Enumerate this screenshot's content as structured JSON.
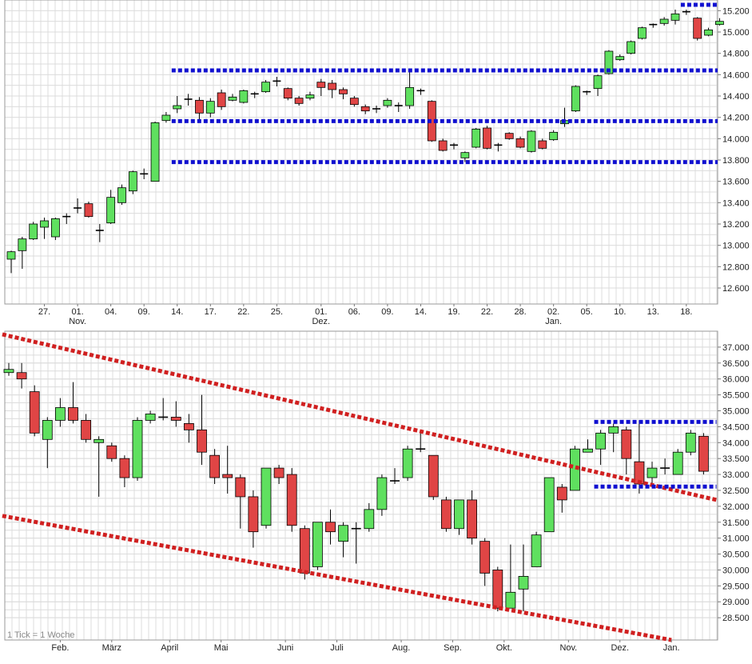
{
  "chart_data": [
    {
      "type": "candlestick",
      "period": "daily",
      "ylim": [
        12450,
        15300
      ],
      "y_ticks": [
        "12.600",
        "12.800",
        "13.000",
        "13.200",
        "13.400",
        "13.600",
        "13.800",
        "14.000",
        "14.200",
        "14.400",
        "14.600",
        "14.800",
        "15.000",
        "15.200"
      ],
      "y_tick_values": [
        12600,
        12800,
        13000,
        13200,
        13400,
        13600,
        13800,
        14000,
        14200,
        14400,
        14600,
        14800,
        15000,
        15200
      ],
      "x_ticks": [
        {
          "label": "27.",
          "index": 3
        },
        {
          "label": "01.",
          "index": 6
        },
        {
          "label": "04.",
          "index": 9
        },
        {
          "label": "09.",
          "index": 12
        },
        {
          "label": "14.",
          "index": 15
        },
        {
          "label": "17.",
          "index": 18
        },
        {
          "label": "22.",
          "index": 21
        },
        {
          "label": "25.",
          "index": 24
        },
        {
          "label": "01.",
          "index": 28
        },
        {
          "label": "06.",
          "index": 31
        },
        {
          "label": "09.",
          "index": 34
        },
        {
          "label": "14.",
          "index": 37
        },
        {
          "label": "19.",
          "index": 40
        },
        {
          "label": "22.",
          "index": 43
        },
        {
          "label": "28.",
          "index": 46
        },
        {
          "label": "02.",
          "index": 49
        },
        {
          "label": "05.",
          "index": 52
        },
        {
          "label": "10.",
          "index": 55
        },
        {
          "label": "13.",
          "index": 58
        },
        {
          "label": "18.",
          "index": 61
        }
      ],
      "month_labels": [
        {
          "label": "Nov.",
          "index": 6
        },
        {
          "label": "Dez.",
          "index": 28
        },
        {
          "label": "Jan.",
          "index": 49
        }
      ],
      "candles": [
        [
          12870,
          12940,
          12740,
          12950
        ],
        [
          12950,
          13060,
          12780,
          13080
        ],
        [
          13060,
          13200,
          13050,
          13220
        ],
        [
          13170,
          13230,
          13060,
          13260
        ],
        [
          13080,
          13250,
          13050,
          13260
        ],
        [
          13260,
          13270,
          13200,
          13300
        ],
        [
          13340,
          13350,
          13300,
          13440
        ],
        [
          13390,
          13270,
          13260,
          13410
        ],
        [
          13140,
          13140,
          13030,
          13200
        ],
        [
          13210,
          13450,
          13200,
          13520
        ],
        [
          13400,
          13540,
          13380,
          13570
        ],
        [
          13510,
          13690,
          13480,
          13700
        ],
        [
          13670,
          13670,
          13620,
          13720
        ],
        [
          13600,
          14150,
          13600,
          14160
        ],
        [
          14170,
          14220,
          14150,
          14250
        ],
        [
          14280,
          14310,
          14240,
          14400
        ],
        [
          14370,
          14370,
          14310,
          14420
        ],
        [
          14360,
          14240,
          14180,
          14390
        ],
        [
          14240,
          14350,
          14200,
          14380
        ],
        [
          14430,
          14300,
          14270,
          14460
        ],
        [
          14360,
          14390,
          14350,
          14420
        ],
        [
          14340,
          14450,
          14330,
          14460
        ],
        [
          14410,
          14420,
          14380,
          14440
        ],
        [
          14440,
          14530,
          14430,
          14550
        ],
        [
          14530,
          14540,
          14490,
          14580
        ],
        [
          14470,
          14380,
          14360,
          14480
        ],
        [
          14380,
          14330,
          14310,
          14400
        ],
        [
          14380,
          14410,
          14360,
          14440
        ],
        [
          14530,
          14480,
          14400,
          14560
        ],
        [
          14520,
          14460,
          14380,
          14550
        ],
        [
          14460,
          14420,
          14370,
          14480
        ],
        [
          14380,
          14320,
          14300,
          14400
        ],
        [
          14300,
          14260,
          14230,
          14320
        ],
        [
          14280,
          14270,
          14240,
          14310
        ],
        [
          14310,
          14360,
          14290,
          14380
        ],
        [
          14310,
          14300,
          14250,
          14340
        ],
        [
          14310,
          14480,
          14280,
          14640
        ],
        [
          14440,
          14450,
          14410,
          14470
        ],
        [
          14350,
          13980,
          13970,
          14360
        ],
        [
          13980,
          13890,
          13880,
          14000
        ],
        [
          13940,
          13930,
          13900,
          13960
        ],
        [
          13820,
          13870,
          13780,
          13880
        ],
        [
          13920,
          14090,
          13910,
          14100
        ],
        [
          14100,
          13910,
          13900,
          14120
        ],
        [
          13930,
          13940,
          13880,
          13960
        ],
        [
          14050,
          14000,
          13990,
          14060
        ],
        [
          14000,
          13920,
          13910,
          14020
        ],
        [
          13880,
          14070,
          13870,
          14080
        ],
        [
          13980,
          13910,
          13900,
          14000
        ],
        [
          13990,
          14060,
          13980,
          14080
        ],
        [
          14140,
          14170,
          14110,
          14290
        ],
        [
          14260,
          14490,
          14250,
          14500
        ],
        [
          14440,
          14430,
          14410,
          14450
        ],
        [
          14470,
          14590,
          14400,
          14600
        ],
        [
          14610,
          14820,
          14600,
          14830
        ],
        [
          14740,
          14770,
          14730,
          14790
        ],
        [
          14800,
          14910,
          14790,
          14920
        ],
        [
          14940,
          15040,
          14930,
          15050
        ],
        [
          15060,
          15070,
          15040,
          15080
        ],
        [
          15080,
          15120,
          15060,
          15140
        ],
        [
          15110,
          15170,
          15070,
          15210
        ],
        [
          15180,
          15190,
          15160,
          15210
        ],
        [
          15130,
          14940,
          14920,
          15140
        ],
        [
          14970,
          15020,
          14960,
          15040
        ],
        [
          15070,
          15100,
          15060,
          15130
        ]
      ],
      "annotations": [
        {
          "type": "horizontal_line",
          "y": 15255,
          "color": "#1010d0",
          "from_index": 61,
          "to_index": 65
        },
        {
          "type": "horizontal_line",
          "y": 14640,
          "color": "#1010d0",
          "from_index": 15,
          "to_index": 65
        },
        {
          "type": "horizontal_line",
          "y": 14165,
          "color": "#1010d0",
          "from_index": 15,
          "to_index": 65
        },
        {
          "type": "horizontal_line",
          "y": 13780,
          "color": "#1010d0",
          "from_index": 15,
          "to_index": 65
        }
      ]
    },
    {
      "type": "candlestick",
      "period": "weekly",
      "ylim": [
        27800,
        37500
      ],
      "y_ticks": [
        "28.500",
        "29.000",
        "29.500",
        "30.000",
        "30.500",
        "31.000",
        "31.500",
        "32.000",
        "32.500",
        "33.000",
        "33.500",
        "34.000",
        "34.500",
        "35.000",
        "35.500",
        "36.000",
        "36.500",
        "37.000"
      ],
      "y_tick_values": [
        28500,
        29000,
        29500,
        30000,
        30500,
        31000,
        31500,
        32000,
        32500,
        33000,
        33500,
        34000,
        34500,
        35000,
        35500,
        36000,
        36500,
        37000
      ],
      "x_ticks": [
        {
          "label": "Feb.",
          "index": 4
        },
        {
          "label": "März",
          "index": 8
        },
        {
          "label": "April",
          "index": 12.5
        },
        {
          "label": "Mai",
          "index": 16.5
        },
        {
          "label": "Juni",
          "index": 21.5
        },
        {
          "label": "Juli",
          "index": 25.5
        },
        {
          "label": "Aug.",
          "index": 30.5
        },
        {
          "label": "Sep.",
          "index": 34.5
        },
        {
          "label": "Okt.",
          "index": 38.5
        },
        {
          "label": "Nov.",
          "index": 43.5
        },
        {
          "label": "Dez.",
          "index": 47.5
        },
        {
          "label": "Jan.",
          "index": 51.5
        }
      ],
      "note": "1 Tick = 1 Woche",
      "candles": [
        [
          36200,
          36300,
          36100,
          36500
        ],
        [
          36200,
          36000,
          35700,
          36500
        ],
        [
          35600,
          34300,
          34200,
          35800
        ],
        [
          34100,
          34700,
          33200,
          34800
        ],
        [
          34700,
          35100,
          34500,
          35400
        ],
        [
          35100,
          34700,
          34600,
          35900
        ],
        [
          34700,
          34100,
          34000,
          34900
        ],
        [
          34000,
          34100,
          32300,
          34200
        ],
        [
          33900,
          33500,
          33400,
          34000
        ],
        [
          33500,
          32900,
          32600,
          33600
        ],
        [
          32900,
          34700,
          32800,
          34800
        ],
        [
          34700,
          34900,
          34600,
          35000
        ],
        [
          34800,
          34800,
          34700,
          35400
        ],
        [
          34800,
          34700,
          34500,
          35300
        ],
        [
          34600,
          34400,
          34000,
          34900
        ],
        [
          34400,
          33700,
          33300,
          35500
        ],
        [
          33600,
          32900,
          32700,
          33800
        ],
        [
          33000,
          32900,
          32400,
          33900
        ],
        [
          32900,
          32300,
          31300,
          33000
        ],
        [
          32300,
          31200,
          30700,
          32500
        ],
        [
          31400,
          33200,
          31300,
          33200
        ],
        [
          33200,
          32900,
          32700,
          33300
        ],
        [
          33000,
          31400,
          31200,
          33200
        ],
        [
          31300,
          29900,
          29700,
          31400
        ],
        [
          30100,
          31500,
          30000,
          31500
        ],
        [
          31500,
          31200,
          30800,
          31900
        ],
        [
          30900,
          31400,
          30400,
          31500
        ],
        [
          31300,
          31300,
          30200,
          31500
        ],
        [
          31300,
          31900,
          31200,
          32100
        ],
        [
          31900,
          32900,
          31700,
          33000
        ],
        [
          32800,
          32800,
          32700,
          33200
        ],
        [
          32900,
          33800,
          32800,
          33900
        ],
        [
          33800,
          33800,
          33700,
          34300
        ],
        [
          33600,
          32300,
          32200,
          33600
        ],
        [
          32200,
          31300,
          31200,
          32300
        ],
        [
          31300,
          32200,
          31100,
          32200
        ],
        [
          32200,
          31000,
          30800,
          32500
        ],
        [
          30900,
          29900,
          29500,
          31000
        ],
        [
          30000,
          28800,
          28700,
          30100
        ],
        [
          28800,
          29300,
          28800,
          30800
        ],
        [
          29400,
          29800,
          28700,
          30800
        ],
        [
          30100,
          31100,
          30100,
          31200
        ],
        [
          31200,
          32900,
          31200,
          32900
        ],
        [
          32600,
          32200,
          31800,
          32700
        ],
        [
          32500,
          33800,
          32500,
          33900
        ],
        [
          33700,
          33800,
          33700,
          34100
        ],
        [
          33800,
          34300,
          33300,
          34400
        ],
        [
          34300,
          34500,
          33700,
          34600
        ],
        [
          34400,
          33500,
          33000,
          34500
        ],
        [
          33400,
          32700,
          32400,
          34700
        ],
        [
          32900,
          33200,
          32700,
          33400
        ],
        [
          33200,
          33200,
          33000,
          33500
        ],
        [
          33000,
          33700,
          33000,
          33800
        ],
        [
          33700,
          34300,
          33600,
          34400
        ],
        [
          34200,
          33100,
          33000,
          34300
        ]
      ],
      "annotations": [
        {
          "type": "trend_line",
          "color": "#d02020",
          "from": {
            "index": -0.5,
            "y": 37400
          },
          "to": {
            "index": 55,
            "y": 32200
          }
        },
        {
          "type": "trend_line",
          "color": "#d02020",
          "from": {
            "index": -0.5,
            "y": 31700
          },
          "to": {
            "index": 51.5,
            "y": 27800
          }
        },
        {
          "type": "horizontal_line",
          "y": 34650,
          "color": "#1010d0",
          "from_index": 46,
          "to_index": 55
        },
        {
          "type": "horizontal_line",
          "y": 32620,
          "color": "#1010d0",
          "from_index": 46,
          "to_index": 55
        }
      ]
    }
  ],
  "colors": {
    "up": "#5fe05f",
    "down": "#e04545",
    "grid": "#dcdcdc",
    "support_blue": "#1010d0",
    "trend_red": "#d02020"
  }
}
